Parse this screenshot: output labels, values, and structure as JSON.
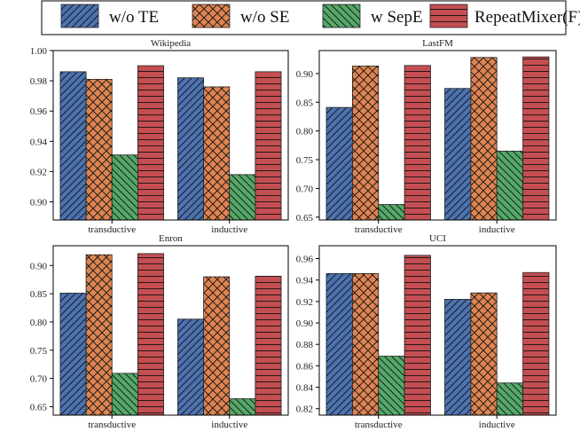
{
  "legend": [
    {
      "name": "w/o TE",
      "color": "#4c72b0",
      "hatch": "diag"
    },
    {
      "name": "w/o SE",
      "color": "#dd8452",
      "hatch": "cross"
    },
    {
      "name": "w SepE",
      "color": "#55a868",
      "hatch": "back"
    },
    {
      "name": "RepeatMixer(F)",
      "color": "#c44e52",
      "hatch": "horiz"
    }
  ],
  "chart_data": [
    {
      "type": "bar",
      "title": "Wikipedia",
      "categories": [
        "transductive",
        "inductive"
      ],
      "series": [
        {
          "name": "w/o TE",
          "values": [
            0.986,
            0.982
          ]
        },
        {
          "name": "w/o SE",
          "values": [
            0.981,
            0.976
          ]
        },
        {
          "name": "w SepE",
          "values": [
            0.931,
            0.918
          ]
        },
        {
          "name": "RepeatMixer(F)",
          "values": [
            0.99,
            0.986
          ]
        }
      ],
      "ylim": [
        0.888,
        1.0
      ],
      "yticks": [
        0.9,
        0.92,
        0.94,
        0.96,
        0.98,
        1.0
      ],
      "ytick_labels": [
        "0.90",
        "0.92",
        "0.94",
        "0.96",
        "0.98",
        "1.00"
      ],
      "legend_position": "top"
    },
    {
      "type": "bar",
      "title": "LastFM",
      "categories": [
        "transductive",
        "inductive"
      ],
      "series": [
        {
          "name": "w/o TE",
          "values": [
            0.841,
            0.874
          ]
        },
        {
          "name": "w/o SE",
          "values": [
            0.913,
            0.928
          ]
        },
        {
          "name": "w SepE",
          "values": [
            0.672,
            0.765
          ]
        },
        {
          "name": "RepeatMixer(F)",
          "values": [
            0.914,
            0.929
          ]
        }
      ],
      "ylim": [
        0.645,
        0.94
      ],
      "yticks": [
        0.65,
        0.7,
        0.75,
        0.8,
        0.85,
        0.9
      ],
      "ytick_labels": [
        "0.65",
        "0.70",
        "0.75",
        "0.80",
        "0.85",
        "0.90"
      ],
      "legend_position": "top"
    },
    {
      "type": "bar",
      "title": "Enron",
      "categories": [
        "transductive",
        "inductive"
      ],
      "series": [
        {
          "name": "w/o TE",
          "values": [
            0.851,
            0.805
          ]
        },
        {
          "name": "w/o SE",
          "values": [
            0.919,
            0.88
          ]
        },
        {
          "name": "w SepE",
          "values": [
            0.709,
            0.664
          ]
        },
        {
          "name": "RepeatMixer(F)",
          "values": [
            0.921,
            0.881
          ]
        }
      ],
      "ylim": [
        0.635,
        0.935
      ],
      "yticks": [
        0.65,
        0.7,
        0.75,
        0.8,
        0.85,
        0.9
      ],
      "ytick_labels": [
        "0.65",
        "0.70",
        "0.75",
        "0.80",
        "0.85",
        "0.90"
      ],
      "legend_position": "top"
    },
    {
      "type": "bar",
      "title": "UCI",
      "categories": [
        "transductive",
        "inductive"
      ],
      "series": [
        {
          "name": "w/o TE",
          "values": [
            0.946,
            0.922
          ]
        },
        {
          "name": "w/o SE",
          "values": [
            0.946,
            0.928
          ]
        },
        {
          "name": "w SepE",
          "values": [
            0.869,
            0.844
          ]
        },
        {
          "name": "RepeatMixer(F)",
          "values": [
            0.963,
            0.947
          ]
        }
      ],
      "ylim": [
        0.814,
        0.972
      ],
      "yticks": [
        0.82,
        0.84,
        0.86,
        0.88,
        0.9,
        0.92,
        0.94,
        0.96
      ],
      "ytick_labels": [
        "0.82",
        "0.84",
        "0.86",
        "0.88",
        "0.90",
        "0.92",
        "0.94",
        "0.96"
      ],
      "legend_position": "top"
    }
  ]
}
